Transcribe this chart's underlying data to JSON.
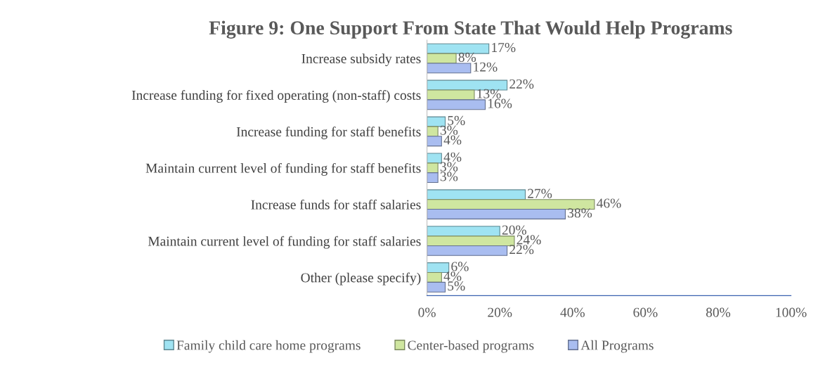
{
  "chart_data": {
    "type": "bar",
    "orientation": "horizontal",
    "title": "Figure 9: One Support From State That Would Help Programs",
    "categories": [
      "Increase subsidy rates",
      "Increase funding for fixed operating (non-staff) costs",
      "Increase funding for staff benefits",
      "Maintain current level of funding for staff benefits",
      "Increase funds for staff salaries",
      "Maintain current level of funding for staff salaries",
      "Other (please specify)"
    ],
    "series": [
      {
        "name": "Family child care home programs",
        "color": "#9fe3f2",
        "values": [
          17,
          22,
          5,
          4,
          27,
          20,
          6
        ],
        "value_labels": [
          "17%",
          "22%",
          "5%",
          "4%",
          "27%",
          "20%",
          "6%"
        ]
      },
      {
        "name": "Center-based programs",
        "color": "#cfe6a0",
        "values": [
          8,
          13,
          3,
          3,
          46,
          24,
          4
        ],
        "value_labels": [
          "8%",
          "13%",
          "3%",
          "3%",
          "46%",
          "24%",
          "4%"
        ]
      },
      {
        "name": "All Programs",
        "color": "#a9bdf0",
        "values": [
          12,
          16,
          4,
          3,
          38,
          22,
          5
        ],
        "value_labels": [
          "12%",
          "16%",
          "4%",
          "3%",
          "38%",
          "22%",
          "5%"
        ]
      }
    ],
    "xlim": [
      0,
      100
    ],
    "xticks": [
      {
        "value": 0,
        "label": "0%"
      },
      {
        "value": 20,
        "label": "20%"
      },
      {
        "value": 40,
        "label": "40%"
      },
      {
        "value": 60,
        "label": "60%"
      },
      {
        "value": 80,
        "label": "80%"
      },
      {
        "value": 100,
        "label": "100%"
      }
    ],
    "grid": false,
    "legend": "bottom"
  }
}
